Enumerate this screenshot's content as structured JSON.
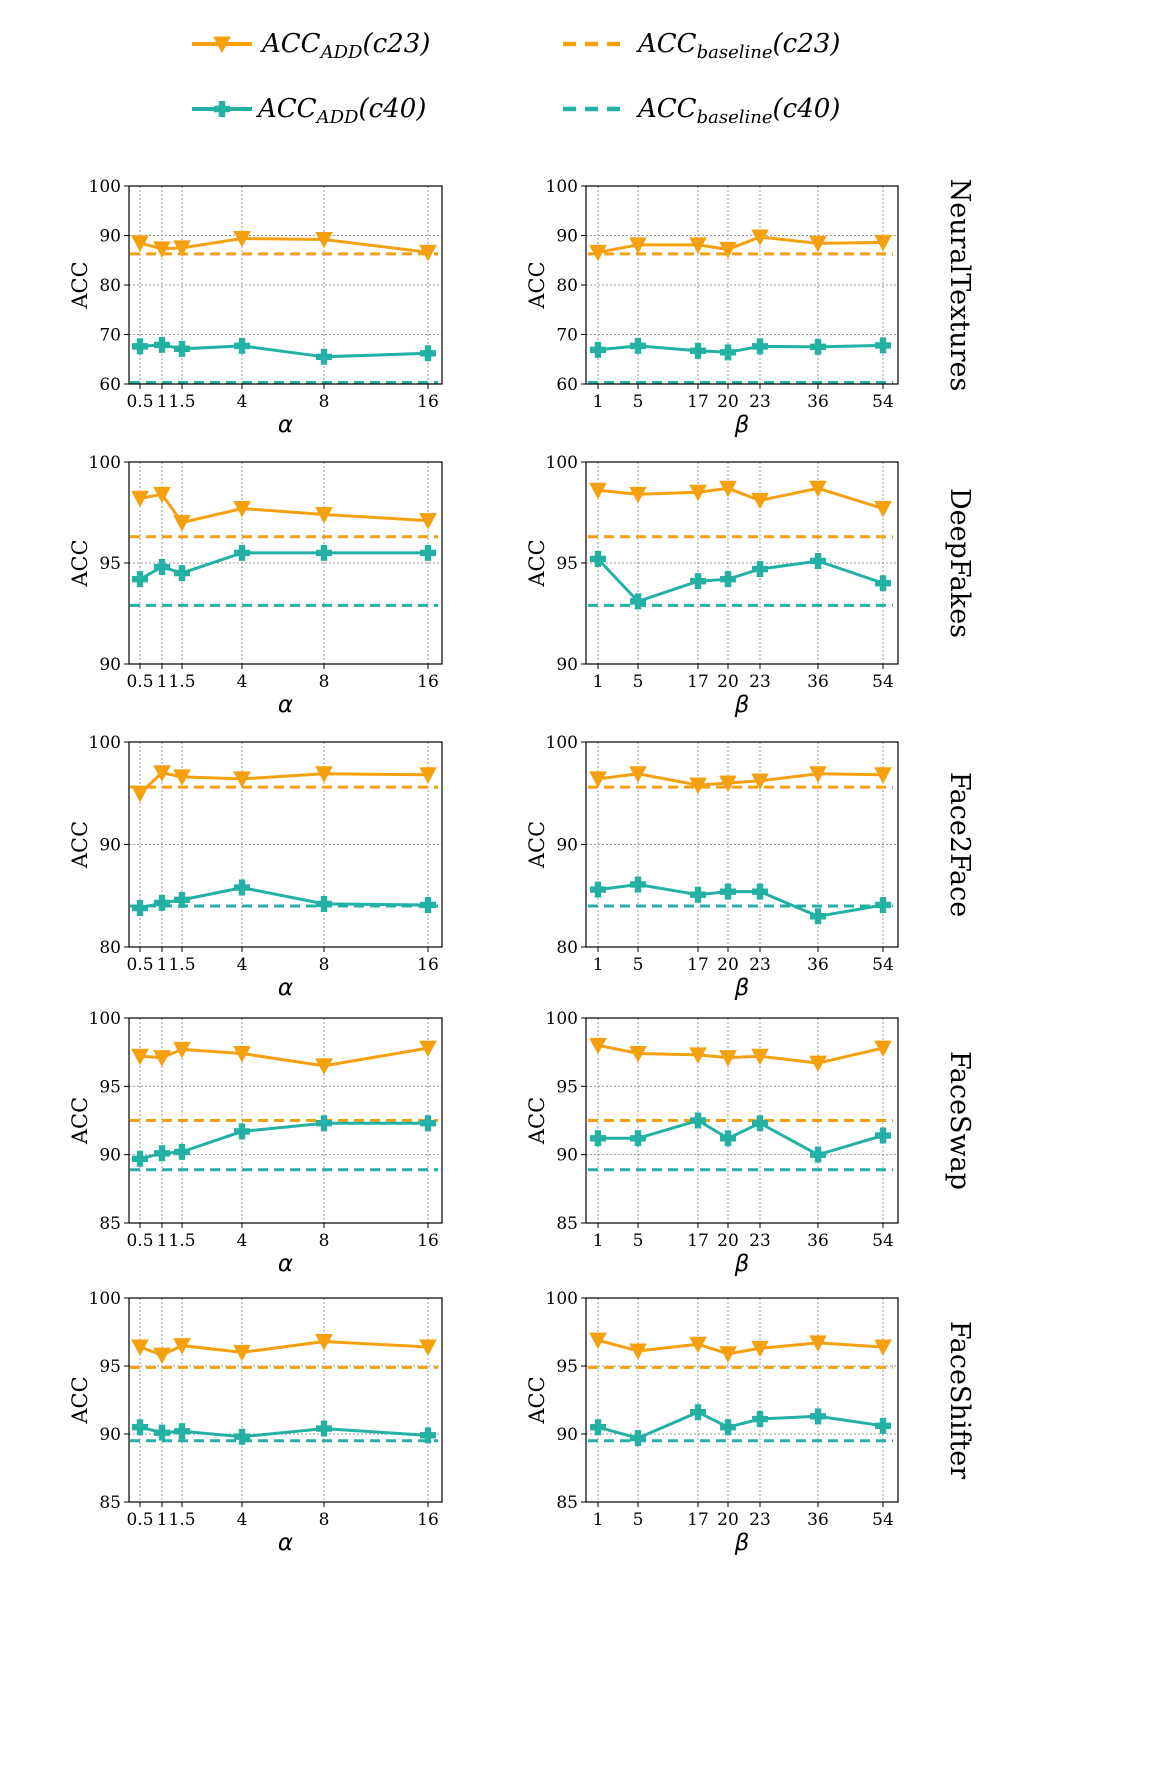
{
  "colors": {
    "c23": "#f5a10f",
    "c40": "#23b1a3"
  },
  "legend": [
    {
      "base": "ACC",
      "sub": "ADD",
      "arg": "(c23)",
      "series": "c23",
      "style": "solid"
    },
    {
      "base": "ACC",
      "sub": "baseline",
      "arg": "(c23)",
      "series": "c23",
      "style": "dashed"
    },
    {
      "base": "ACC",
      "sub": "ADD",
      "arg": "(c40)",
      "series": "c40",
      "style": "solid"
    },
    {
      "base": "ACC",
      "sub": "baseline",
      "arg": "(c40)",
      "series": "c40",
      "style": "dashed"
    }
  ],
  "chart_data": [
    {
      "type": "line",
      "row": "NeuralTextures",
      "param": "alpha",
      "xlabel": "α",
      "ylabel": "ACC",
      "ylim": [
        60,
        100
      ],
      "yticks": [
        60,
        70,
        80,
        90,
        100
      ],
      "x": [
        0.5,
        1,
        1.5,
        4,
        8,
        16
      ],
      "xtick_labels": [
        "0.5",
        "1",
        "1.5",
        "4",
        "8",
        "16"
      ],
      "series": [
        {
          "name": "ACC_ADD(c23)",
          "values": [
            88.5,
            87.3,
            87.5,
            89.4,
            89.2,
            86.6
          ]
        },
        {
          "name": "ACC_ADD(c40)",
          "values": [
            67.6,
            67.9,
            67.1,
            67.7,
            65.5,
            66.2
          ]
        }
      ],
      "baselines": {
        "c23": 86.3,
        "c40": 60.3
      }
    },
    {
      "type": "line",
      "row": "NeuralTextures",
      "param": "beta",
      "xlabel": "β",
      "ylabel": "ACC",
      "ylim": [
        60,
        100
      ],
      "yticks": [
        60,
        70,
        80,
        90,
        100
      ],
      "x": [
        1,
        5,
        17,
        20,
        23,
        36,
        54
      ],
      "xtick_labels": [
        "1",
        "5",
        "17",
        "20",
        "23",
        "36",
        "54"
      ],
      "series": [
        {
          "name": "ACC_ADD(c23)",
          "values": [
            86.6,
            88.1,
            88.1,
            87.2,
            89.7,
            88.4,
            88.6
          ]
        },
        {
          "name": "ACC_ADD(c40)",
          "values": [
            66.9,
            67.7,
            66.7,
            66.4,
            67.6,
            67.5,
            67.8
          ]
        }
      ],
      "baselines": {
        "c23": 86.3,
        "c40": 60.3
      }
    },
    {
      "type": "line",
      "row": "DeepFakes",
      "param": "alpha",
      "xlabel": "α",
      "ylabel": "ACC",
      "ylim": [
        90,
        100
      ],
      "yticks": [
        90,
        95,
        100
      ],
      "x": [
        0.5,
        1,
        1.5,
        4,
        8,
        16
      ],
      "xtick_labels": [
        "0.5",
        "1",
        "1.5",
        "4",
        "8",
        "16"
      ],
      "series": [
        {
          "name": "ACC_ADD(c23)",
          "values": [
            98.2,
            98.4,
            97.0,
            97.7,
            97.4,
            97.1
          ]
        },
        {
          "name": "ACC_ADD(c40)",
          "values": [
            94.2,
            94.8,
            94.5,
            95.5,
            95.5,
            95.5
          ]
        }
      ],
      "baselines": {
        "c23": 96.3,
        "c40": 92.9
      }
    },
    {
      "type": "line",
      "row": "DeepFakes",
      "param": "beta",
      "xlabel": "β",
      "ylabel": "ACC",
      "ylim": [
        90,
        100
      ],
      "yticks": [
        90,
        95,
        100
      ],
      "x": [
        1,
        5,
        17,
        20,
        23,
        36,
        54
      ],
      "xtick_labels": [
        "1",
        "5",
        "17",
        "20",
        "23",
        "36",
        "54"
      ],
      "series": [
        {
          "name": "ACC_ADD(c23)",
          "values": [
            98.6,
            98.4,
            98.5,
            98.7,
            98.1,
            98.7,
            97.7
          ]
        },
        {
          "name": "ACC_ADD(c40)",
          "values": [
            95.2,
            93.1,
            94.1,
            94.2,
            94.7,
            95.1,
            94.0
          ]
        }
      ],
      "baselines": {
        "c23": 96.3,
        "c40": 92.9
      }
    },
    {
      "type": "line",
      "row": "Face2Face",
      "param": "alpha",
      "xlabel": "α",
      "ylabel": "ACC",
      "ylim": [
        80,
        100
      ],
      "yticks": [
        80,
        90,
        100
      ],
      "x": [
        0.5,
        1,
        1.5,
        4,
        8,
        16
      ],
      "xtick_labels": [
        "0.5",
        "1",
        "1.5",
        "4",
        "8",
        "16"
      ],
      "series": [
        {
          "name": "ACC_ADD(c23)",
          "values": [
            95.0,
            97.0,
            96.6,
            96.4,
            96.9,
            96.8
          ]
        },
        {
          "name": "ACC_ADD(c40)",
          "values": [
            83.8,
            84.3,
            84.6,
            85.8,
            84.2,
            84.1
          ]
        }
      ],
      "baselines": {
        "c23": 95.6,
        "c40": 84.0
      }
    },
    {
      "type": "line",
      "row": "Face2Face",
      "param": "beta",
      "xlabel": "β",
      "ylabel": "ACC",
      "ylim": [
        80,
        100
      ],
      "yticks": [
        80,
        90,
        100
      ],
      "x": [
        1,
        5,
        17,
        20,
        23,
        36,
        54
      ],
      "xtick_labels": [
        "1",
        "5",
        "17",
        "20",
        "23",
        "36",
        "54"
      ],
      "series": [
        {
          "name": "ACC_ADD(c23)",
          "values": [
            96.4,
            96.9,
            95.8,
            96.0,
            96.2,
            96.9,
            96.8
          ]
        },
        {
          "name": "ACC_ADD(c40)",
          "values": [
            85.6,
            86.1,
            85.1,
            85.4,
            85.4,
            83.0,
            84.1
          ]
        }
      ],
      "baselines": {
        "c23": 95.6,
        "c40": 84.0
      }
    },
    {
      "type": "line",
      "row": "FaceSwap",
      "param": "alpha",
      "xlabel": "α",
      "ylabel": "ACC",
      "ylim": [
        85,
        100
      ],
      "yticks": [
        85,
        90,
        95,
        100
      ],
      "x": [
        0.5,
        1,
        1.5,
        4,
        8,
        16
      ],
      "xtick_labels": [
        "0.5",
        "1",
        "1.5",
        "4",
        "8",
        "16"
      ],
      "series": [
        {
          "name": "ACC_ADD(c23)",
          "values": [
            97.2,
            97.1,
            97.7,
            97.4,
            96.5,
            97.8
          ]
        },
        {
          "name": "ACC_ADD(c40)",
          "values": [
            89.7,
            90.1,
            90.2,
            91.7,
            92.3,
            92.3
          ]
        }
      ],
      "baselines": {
        "c23": 92.5,
        "c40": 88.9
      }
    },
    {
      "type": "line",
      "row": "FaceSwap",
      "param": "beta",
      "xlabel": "β",
      "ylabel": "ACC",
      "ylim": [
        85,
        100
      ],
      "yticks": [
        85,
        90,
        95,
        100
      ],
      "x": [
        1,
        5,
        17,
        20,
        23,
        36,
        54
      ],
      "xtick_labels": [
        "1",
        "5",
        "17",
        "20",
        "23",
        "36",
        "54"
      ],
      "series": [
        {
          "name": "ACC_ADD(c23)",
          "values": [
            98.0,
            97.4,
            97.3,
            97.1,
            97.2,
            96.7,
            97.8
          ]
        },
        {
          "name": "ACC_ADD(c40)",
          "values": [
            91.2,
            91.2,
            92.5,
            91.2,
            92.3,
            90.0,
            91.4
          ]
        }
      ],
      "baselines": {
        "c23": 92.5,
        "c40": 88.9
      }
    },
    {
      "type": "line",
      "row": "FaceShifter",
      "param": "alpha",
      "xlabel": "α",
      "ylabel": "ACC",
      "ylim": [
        85,
        100
      ],
      "yticks": [
        85,
        90,
        95,
        100
      ],
      "x": [
        0.5,
        1,
        1.5,
        4,
        8,
        16
      ],
      "xtick_labels": [
        "0.5",
        "1",
        "1.5",
        "4",
        "8",
        "16"
      ],
      "series": [
        {
          "name": "ACC_ADD(c23)",
          "values": [
            96.4,
            95.8,
            96.5,
            96.0,
            96.8,
            96.4
          ]
        },
        {
          "name": "ACC_ADD(c40)",
          "values": [
            90.5,
            90.1,
            90.2,
            89.8,
            90.4,
            89.9
          ]
        }
      ],
      "baselines": {
        "c23": 94.9,
        "c40": 89.5
      }
    },
    {
      "type": "line",
      "row": "FaceShifter",
      "param": "beta",
      "xlabel": "β",
      "ylabel": "ACC",
      "ylim": [
        85,
        100
      ],
      "yticks": [
        85,
        90,
        95,
        100
      ],
      "x": [
        1,
        5,
        17,
        20,
        23,
        36,
        54
      ],
      "xtick_labels": [
        "1",
        "5",
        "17",
        "20",
        "23",
        "36",
        "54"
      ],
      "series": [
        {
          "name": "ACC_ADD(c23)",
          "values": [
            96.9,
            96.1,
            96.6,
            95.9,
            96.3,
            96.7,
            96.4
          ]
        },
        {
          "name": "ACC_ADD(c40)",
          "values": [
            90.5,
            89.7,
            91.6,
            90.5,
            91.1,
            91.3,
            90.6
          ]
        }
      ],
      "baselines": {
        "c23": 94.9,
        "c40": 89.5
      }
    }
  ]
}
